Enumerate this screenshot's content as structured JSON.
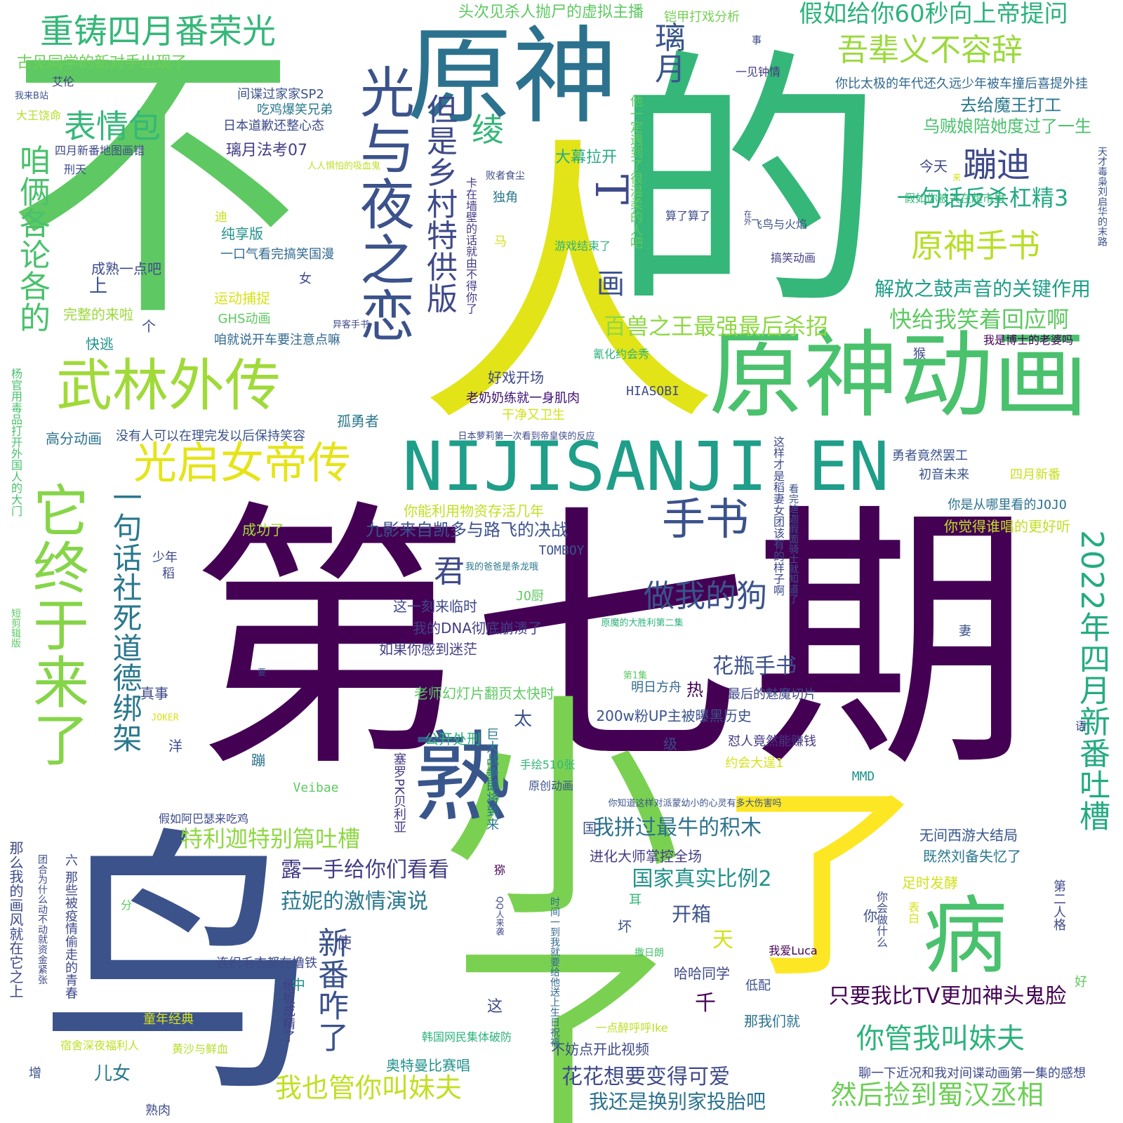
{
  "palette": [
    "#440154",
    "#3b528b",
    "#21918c",
    "#5ec962",
    "#fde725"
  ],
  "words": [
    {
      "text": "不",
      "color": "#5ec962"
    },
    {
      "text": "人",
      "color": "#e2e418"
    },
    {
      "text": "的",
      "color": "#35b779"
    },
    {
      "text": "第七期",
      "color": "#440154"
    },
    {
      "text": "鸟",
      "color": "#3b528b"
    },
    {
      "text": "小了",
      "color": "#7ad151"
    },
    {
      "text": "了",
      "color": "#fde725"
    },
    {
      "text": "原神",
      "color": "#2c728e"
    },
    {
      "text": "原神动画",
      "color": "#4ac16d"
    },
    {
      "text": "NIJISANJI EN",
      "color": "#1f9e89"
    },
    {
      "text": "熟",
      "color": "#39568c"
    },
    {
      "text": "病",
      "color": "#4ac16d"
    },
    {
      "text": "光与夜之恋",
      "color": "#3b528b"
    },
    {
      "text": "武林外传",
      "color": "#a0da39"
    },
    {
      "text": "它终于来了",
      "color": "#86d549"
    },
    {
      "text": "光启女帝传",
      "color": "#e5e419"
    },
    {
      "text": "重铸四月番荣光",
      "color": "#35b779"
    },
    {
      "text": "咱俩各论各的",
      "color": "#4ac16d"
    },
    {
      "text": "表情包",
      "color": "#35b779"
    },
    {
      "text": "但是乡村特供版",
      "color": "#3e4a89"
    },
    {
      "text": "一句话社死道德绑架",
      "color": "#2a788e"
    },
    {
      "text": "手书",
      "color": "#3b528b"
    },
    {
      "text": "吾辈义不容辞",
      "color": "#9bd93c"
    },
    {
      "text": "假如给你60秒向上帝提问",
      "color": "#2db27d"
    },
    {
      "text": "蹦迪",
      "color": "#3e4a89"
    },
    {
      "text": "原神手书",
      "color": "#b8de29"
    },
    {
      "text": "一句话反杀杠精3",
      "color": "#22a884"
    },
    {
      "text": "2022年四月新番吐槽",
      "color": "#25ab82"
    },
    {
      "text": "做我的狗",
      "color": "#3b528b"
    },
    {
      "text": "璃月",
      "color": "#39568c"
    },
    {
      "text": "绫",
      "color": "#35b779"
    },
    {
      "text": "T",
      "color": "#3e4a89"
    },
    {
      "text": "画",
      "color": "#3b528b"
    },
    {
      "text": "君",
      "color": "#3e4a89"
    },
    {
      "text": "快给我笑着回应啊",
      "color": "#5ec962"
    },
    {
      "text": "解放之鼓声音的关键作用",
      "color": "#1f9e89"
    },
    {
      "text": "百兽之王最强最后杀招",
      "color": "#8fd744"
    },
    {
      "text": "你管我叫妹夫",
      "color": "#2db27d"
    },
    {
      "text": "然后捡到蜀汉丞相",
      "color": "#6ece58"
    },
    {
      "text": "我也管你叫妹夫",
      "color": "#c2df23"
    },
    {
      "text": "新番咋了",
      "color": "#3b528b"
    },
    {
      "text": "特利迦特别篇吐槽",
      "color": "#8fd744"
    },
    {
      "text": "我拼过最牛的积木",
      "color": "#2c728e"
    },
    {
      "text": "露一手给你们看看",
      "color": "#433e85"
    },
    {
      "text": "菈妮的激情演说",
      "color": "#2a788e"
    },
    {
      "text": "国家真实比例2",
      "color": "#21918c"
    },
    {
      "text": "只要我比TV更加神头鬼脸",
      "color": "#440154"
    },
    {
      "text": "花花想要变得可爱",
      "color": "#3e4a89"
    },
    {
      "text": "我还是换别家投胎吧",
      "color": "#2c728e"
    },
    {
      "text": "花瓶手书",
      "color": "#3b528b"
    },
    {
      "text": "九影来自凯多与路飞的决战",
      "color": "#3b528b"
    },
    {
      "text": "头次见杀人抛尸的虚拟主播",
      "color": "#5ec962"
    },
    {
      "text": "古见同学的新对手出现了",
      "color": "#6ece58"
    },
    {
      "text": "你比太极的年代还久远少年被车撞后喜提外挂",
      "color": "#31688e"
    },
    {
      "text": "去给魔王打工",
      "color": "#2a788e"
    },
    {
      "text": "乌贼娘陪她度过了一生",
      "color": "#4ac16d"
    },
    {
      "text": "铠甲打戏分析",
      "color": "#75d054"
    },
    {
      "text": "间谍过家家SP2",
      "color": "#3b528b"
    },
    {
      "text": "吃鸡爆笑兄弟",
      "color": "#2a788e"
    },
    {
      "text": "日本道歉还整心态",
      "color": "#3e4a89"
    },
    {
      "text": "璃月法考07",
      "color": "#433e85"
    },
    {
      "text": "大幕拉开",
      "color": "#25ab82"
    },
    {
      "text": "纯享版",
      "color": "#21918c"
    },
    {
      "text": "一口气看完搞笑国漫",
      "color": "#31688e"
    },
    {
      "text": "成熟一点吧",
      "color": "#3e4a89"
    },
    {
      "text": "运动捕捉",
      "color": "#d8e219"
    },
    {
      "text": "完整的来啦",
      "color": "#9bd93c"
    },
    {
      "text": "GHS动画",
      "color": "#5ec962"
    },
    {
      "text": "咱就说开车要注意点嘛",
      "color": "#31688e"
    },
    {
      "text": "好戏开场",
      "color": "#3e4a89"
    },
    {
      "text": "老奶奶练就一身肌肉",
      "color": "#3b0f70"
    },
    {
      "text": "干净又卫生",
      "color": "#d2e21b"
    },
    {
      "text": "日本萝莉第一次看到帝皇侠的反应",
      "color": "#3e4a89"
    },
    {
      "text": "孤勇者",
      "color": "#2a788e"
    },
    {
      "text": "高分动画",
      "color": "#2c728e"
    },
    {
      "text": "没有人可以在理完发以后保持笑容",
      "color": "#3b528b"
    },
    {
      "text": "你能利用物资存活几年",
      "color": "#c2df23"
    },
    {
      "text": "成功了",
      "color": "#a5db36"
    },
    {
      "text": "TOMBOY",
      "color": "#3b528b"
    },
    {
      "text": "这一刻来临时",
      "color": "#3e4a89"
    },
    {
      "text": "我的DNA彻底崩溃了",
      "color": "#433e85"
    },
    {
      "text": "如果你感到迷茫",
      "color": "#433e85"
    },
    {
      "text": "老师幻灯片翻页太快时",
      "color": "#5ec962"
    },
    {
      "text": "JO厨",
      "color": "#5ec962"
    },
    {
      "text": "200w粉UP主被曝黑历史",
      "color": "#3b528b"
    },
    {
      "text": "最后的魅魔切片",
      "color": "#3e4a89"
    },
    {
      "text": "怼人竟然能赚钱",
      "color": "#443983"
    },
    {
      "text": "约会大逞1",
      "color": "#d8e219"
    },
    {
      "text": "明日方舟",
      "color": "#31688e"
    },
    {
      "text": "手绘510张",
      "color": "#35b779"
    },
    {
      "text": "原创动画",
      "color": "#3b528b"
    },
    {
      "text": "公开处刑",
      "color": "#2db27d"
    },
    {
      "text": "MMD",
      "color": "#21918c"
    },
    {
      "text": "Veibae",
      "color": "#5ec962"
    },
    {
      "text": "你知道这样对派蒙幼小的心灵有多大伤害吗",
      "color": "#3b528b"
    },
    {
      "text": "假如阿巴瑟来吃鸡",
      "color": "#3e4a89"
    },
    {
      "text": "无间西游大结局",
      "color": "#39568c"
    },
    {
      "text": "既然刘备失忆了",
      "color": "#2a788e"
    },
    {
      "text": "足时发酵",
      "color": "#d2e21b"
    },
    {
      "text": "进化大师掌控全场",
      "color": "#433e85"
    },
    {
      "text": "开箱",
      "color": "#3b528b"
    },
    {
      "text": "连织毛衣都在撸铁",
      "color": "#3e4a89"
    },
    {
      "text": "哈哈同学",
      "color": "#3e4a89"
    },
    {
      "text": "我爱Luca",
      "color": "#440154"
    },
    {
      "text": "那我们就",
      "color": "#2c728e"
    },
    {
      "text": "不妨点开此视频",
      "color": "#3e4a89"
    },
    {
      "text": "韩国网民集体破防",
      "color": "#2db27d"
    },
    {
      "text": "奥特曼比赛唱",
      "color": "#21918c"
    },
    {
      "text": "一点醉呼呼Ike",
      "color": "#bddf26"
    },
    {
      "text": "聊一下近况和我对间谍动画第一集的感想",
      "color": "#3e4a89"
    },
    {
      "text": "你是从哪里看的JOJO",
      "color": "#2c728e"
    },
    {
      "text": "你觉得谁唱的更好听",
      "color": "#c2df23"
    },
    {
      "text": "勇者竟然罢工",
      "color": "#3b528b"
    },
    {
      "text": "初音未来",
      "color": "#3b528b"
    },
    {
      "text": "四月新番",
      "color": "#c8e020"
    },
    {
      "text": "HIASOBI",
      "color": "#3e4a89"
    },
    {
      "text": "我是博士的老婆吗",
      "color": "#440154"
    },
    {
      "text": "氰化约会秀",
      "color": "#2db27d"
    },
    {
      "text": "假如你被关在超市里",
      "color": "#35b779"
    },
    {
      "text": "飞鸟与火焰",
      "color": "#3b528b"
    },
    {
      "text": "搞笑动画",
      "color": "#433e85"
    },
    {
      "text": "算了算了",
      "color": "#3e4a89"
    },
    {
      "text": "游戏结束了",
      "color": "#2db27d"
    },
    {
      "text": "今天",
      "color": "#3e4a89"
    },
    {
      "text": "一见钟情",
      "color": "#443983"
    },
    {
      "text": "独角",
      "color": "#2a788e"
    },
    {
      "text": "败者食尘",
      "color": "#3e4a89"
    },
    {
      "text": "人人惧怕的吸血鬼",
      "color": "#bddf26"
    },
    {
      "text": "四月新番地图画错",
      "color": "#3e4a89"
    },
    {
      "text": "大王饶命",
      "color": "#b5de2b"
    },
    {
      "text": "我来B站",
      "color": "#3b528b"
    },
    {
      "text": "刑天",
      "color": "#3e4a89"
    },
    {
      "text": "艾伦",
      "color": "#433e85"
    },
    {
      "text": "快逃",
      "color": "#21918c"
    },
    {
      "text": "真事",
      "color": "#3e4a89"
    },
    {
      "text": "洋",
      "color": "#3e4a89"
    },
    {
      "text": "蹦",
      "color": "#2c728e"
    },
    {
      "text": "热",
      "color": "#440154"
    },
    {
      "text": "太",
      "color": "#3b528b"
    },
    {
      "text": "千",
      "color": "#440154"
    },
    {
      "text": "天",
      "color": "#d2e21b"
    },
    {
      "text": "使",
      "color": "#3e4a89"
    },
    {
      "text": "中",
      "color": "#21918c"
    },
    {
      "text": "这",
      "color": "#3e4a89"
    },
    {
      "text": "国",
      "color": "#3b528b"
    },
    {
      "text": "儿女",
      "color": "#2a788e"
    },
    {
      "text": "熟肉",
      "color": "#3e4a89"
    },
    {
      "text": "增",
      "color": "#3b528b"
    },
    {
      "text": "少年",
      "color": "#3e4a89"
    },
    {
      "text": "上",
      "color": "#3b528b"
    },
    {
      "text": "个",
      "color": "#3e4a89"
    },
    {
      "text": "级",
      "color": "#3e4a89"
    },
    {
      "text": "异客手书",
      "color": "#3e4a89"
    },
    {
      "text": "第1集",
      "color": "#5ec962"
    },
    {
      "text": "JOKER",
      "color": "#d8e219"
    },
    {
      "text": "坏",
      "color": "#3b528b"
    },
    {
      "text": "耳",
      "color": "#35b779"
    },
    {
      "text": "撒日朗",
      "color": "#4ac16d"
    },
    {
      "text": "低配",
      "color": "#3b528b"
    },
    {
      "text": "你",
      "color": "#3b528b"
    },
    {
      "text": "好",
      "color": "#5ec962"
    },
    {
      "text": "表白",
      "color": "#d8e219"
    },
    {
      "text": "第二人格",
      "color": "#3e4a89"
    },
    {
      "text": "妻",
      "color": "#3b528b"
    },
    {
      "text": "语",
      "color": "#3e4a89"
    },
    {
      "text": "猴",
      "color": "#3e4a89"
    },
    {
      "text": "女",
      "color": "#3e4a89"
    },
    {
      "text": "迪",
      "color": "#c8e020"
    },
    {
      "text": "马",
      "color": "#d2e21b"
    },
    {
      "text": "稻",
      "color": "#3e4a89"
    },
    {
      "text": "童年经典",
      "color": "#d2e21b"
    },
    {
      "text": "宿舍深夜福利人",
      "color": "#bddf26"
    },
    {
      "text": "黄沙与鲜血",
      "color": "#b5de2b"
    },
    {
      "text": "原魔的大胜利第二集",
      "color": "#2db27d"
    },
    {
      "text": "我的爸爸是条龙哦",
      "color": "#2a788e"
    },
    {
      "text": "卡在墙壁的话就由不得你了",
      "color": "#433e85"
    },
    {
      "text": "他一定遇到了很温柔的人吧",
      "color": "#5ec962"
    },
    {
      "text": "天才毒枭刘启华的末路",
      "color": "#3b528b"
    },
    {
      "text": "这样才是稻妻女团该有的样子啊",
      "color": "#3e4a89"
    },
    {
      "text": "看完迪迦假面骑士就知道了",
      "color": "#3b528b"
    },
    {
      "text": "那么我的画风就在它之上",
      "color": "#3e4a89"
    },
    {
      "text": "杨官用毒品打开外国人的大门",
      "color": "#4ac16d"
    },
    {
      "text": "团合为什么动不动就资金紧张",
      "color": "#3e4a89"
    },
    {
      "text": "六 那些被疫情偷走的青春",
      "color": "#3e4a89"
    },
    {
      "text": "短剪辑版",
      "color": "#5ec962"
    },
    {
      "text": "纸板成精了",
      "color": "#433e85"
    },
    {
      "text": "时间一到我就要给他送上生日祝福",
      "color": "#31688e"
    },
    {
      "text": "塞罗PK贝利亚",
      "color": "#433e85"
    },
    {
      "text": "巨大战争即将到来",
      "color": "#2a788e"
    },
    {
      "text": "猕",
      "color": "#440154"
    },
    {
      "text": "QQ人来袭",
      "color": "#3e4a89"
    },
    {
      "text": "你会做什么",
      "color": "#3e4a89"
    },
    {
      "text": "分",
      "color": "#5ec962"
    },
    {
      "text": "事",
      "color": "#3e4a89"
    },
    {
      "text": "在外",
      "color": "#3e4a89"
    },
    {
      "text": "要",
      "color": "#3e4a89"
    },
    {
      "text": "来",
      "color": "#d2e21b"
    }
  ]
}
